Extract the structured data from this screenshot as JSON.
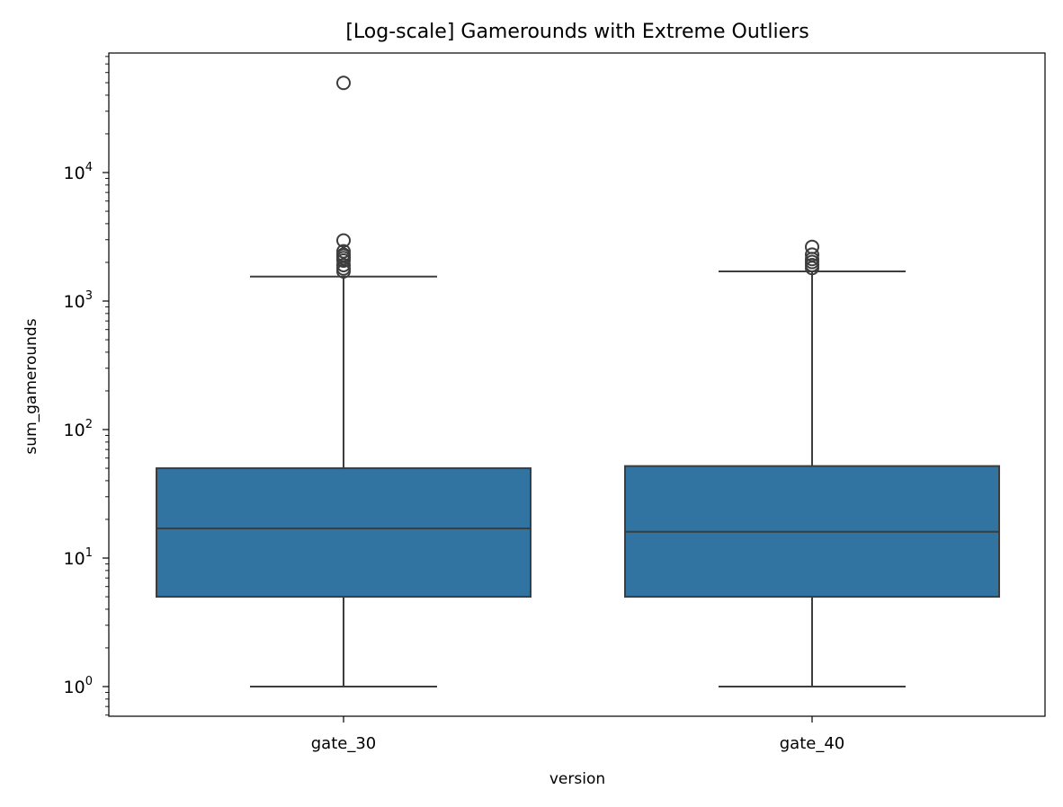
{
  "chart_data": {
    "type": "box",
    "title": "[Log-scale] Gamerounds with Extreme Outliers",
    "xlabel": "version",
    "ylabel": "sum_gamerounds",
    "yscale": "log",
    "ylim": [
      0.6,
      85000
    ],
    "yticks": [
      {
        "value": 1,
        "base": "10",
        "exp": "0"
      },
      {
        "value": 10,
        "base": "10",
        "exp": "1"
      },
      {
        "value": 100,
        "base": "10",
        "exp": "2"
      },
      {
        "value": 1000,
        "base": "10",
        "exp": "3"
      },
      {
        "value": 10000,
        "base": "10",
        "exp": "4"
      }
    ],
    "categories": [
      "gate_30",
      "gate_40"
    ],
    "box_color": "#3274a1",
    "edge_color": "#3d3d3d",
    "boxes": [
      {
        "category": "gate_30",
        "whisker_low": 1,
        "q1": 5,
        "median": 17,
        "q3": 50,
        "whisker_high": 1550,
        "outliers": [
          49854,
          2961,
          2438,
          2294,
          2251,
          2156,
          2063,
          1906,
          1793,
          1702
        ]
      },
      {
        "category": "gate_40",
        "whisker_low": 1,
        "q1": 5,
        "median": 16,
        "q3": 52,
        "whisker_high": 1700,
        "outliers": [
          2640,
          2294,
          2124,
          2015,
          1906,
          1808
        ]
      }
    ],
    "grid": false,
    "legend": "none"
  }
}
